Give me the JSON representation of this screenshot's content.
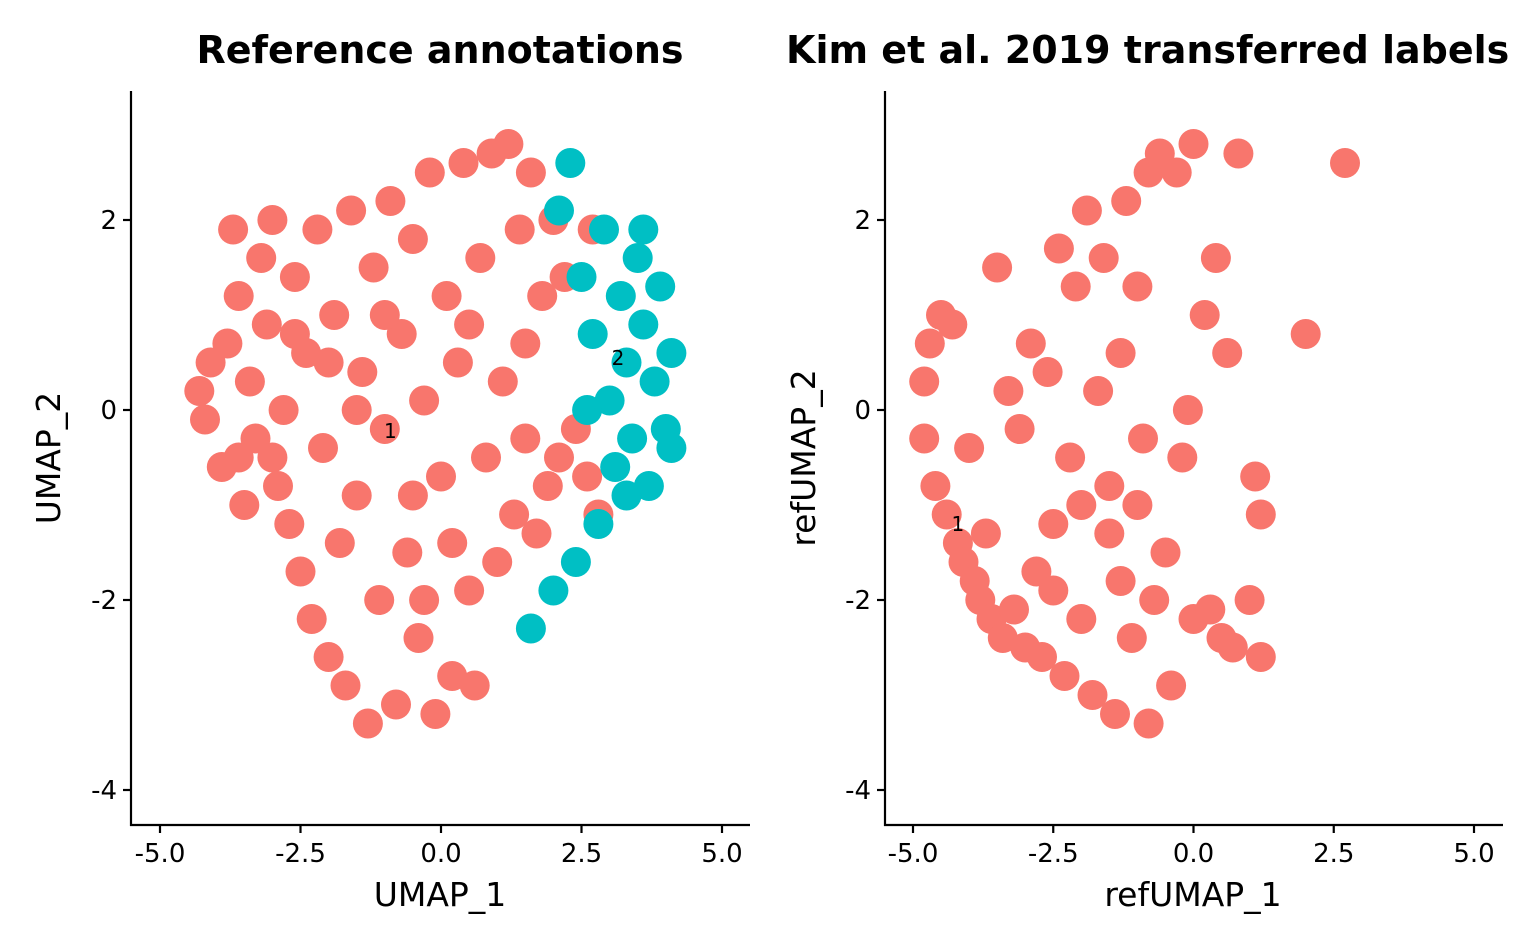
{
  "colors": {
    "cluster_1": "#F8766D",
    "cluster_2": "#00BFC4",
    "axis": "#000000"
  },
  "chart_data": [
    {
      "type": "scatter",
      "title": "Reference annotations",
      "xlabel": "UMAP_1",
      "ylabel": "UMAP_2",
      "xlim": [
        -5.5,
        5.5
      ],
      "ylim": [
        -4.3,
        3.35
      ],
      "xticks": [
        -5,
        -2.5,
        0,
        2.5,
        5
      ],
      "xtick_labels": [
        "-5.0",
        "-2.5",
        "0.0",
        "2.5",
        "5.0"
      ],
      "yticks": [
        -4,
        -2,
        0,
        2
      ],
      "ytick_labels": [
        "-4",
        "-2",
        "0",
        "2"
      ],
      "cluster_labels": [
        {
          "text": "1",
          "x": -0.9,
          "y": -0.22
        },
        {
          "text": "2",
          "x": 3.15,
          "y": 0.55
        }
      ],
      "series": [
        {
          "name": "1",
          "color": "#F8766D",
          "points": [
            [
              -4.3,
              0.2
            ],
            [
              -4.2,
              -0.1
            ],
            [
              -4.1,
              0.5
            ],
            [
              -3.9,
              -0.6
            ],
            [
              -3.8,
              0.7
            ],
            [
              -3.7,
              1.9
            ],
            [
              -3.6,
              1.2
            ],
            [
              -3.5,
              -1.0
            ],
            [
              -3.4,
              0.3
            ],
            [
              -3.3,
              -0.3
            ],
            [
              -3.2,
              1.6
            ],
            [
              -3.1,
              0.9
            ],
            [
              -3.0,
              2.0
            ],
            [
              -2.9,
              -0.8
            ],
            [
              -2.8,
              0.0
            ],
            [
              -2.7,
              -1.2
            ],
            [
              -2.6,
              1.4
            ],
            [
              -2.5,
              -1.7
            ],
            [
              -2.4,
              0.6
            ],
            [
              -2.3,
              -2.2
            ],
            [
              -2.2,
              1.9
            ],
            [
              -2.1,
              -0.4
            ],
            [
              -2.0,
              -2.6
            ],
            [
              -1.9,
              1.0
            ],
            [
              -1.8,
              -1.4
            ],
            [
              -1.7,
              -2.9
            ],
            [
              -1.6,
              2.1
            ],
            [
              -1.5,
              -0.9
            ],
            [
              -1.4,
              0.4
            ],
            [
              -1.3,
              -3.3
            ],
            [
              -1.2,
              1.5
            ],
            [
              -1.1,
              -2.0
            ],
            [
              -1.0,
              -0.2
            ],
            [
              -0.9,
              2.2
            ],
            [
              -0.8,
              -3.1
            ],
            [
              -0.7,
              0.8
            ],
            [
              -0.6,
              -1.5
            ],
            [
              -0.5,
              1.8
            ],
            [
              -0.4,
              -2.4
            ],
            [
              -0.3,
              0.1
            ],
            [
              -0.2,
              2.5
            ],
            [
              -0.1,
              -3.2
            ],
            [
              0.0,
              -0.7
            ],
            [
              0.1,
              1.2
            ],
            [
              0.2,
              -2.8
            ],
            [
              0.3,
              0.5
            ],
            [
              0.4,
              2.6
            ],
            [
              0.5,
              -1.9
            ],
            [
              0.6,
              -2.9
            ],
            [
              0.7,
              1.6
            ],
            [
              0.8,
              -0.5
            ],
            [
              0.9,
              2.7
            ],
            [
              1.0,
              -1.6
            ],
            [
              1.1,
              0.3
            ],
            [
              1.2,
              2.8
            ],
            [
              1.3,
              -1.1
            ],
            [
              1.4,
              1.9
            ],
            [
              1.5,
              -0.3
            ],
            [
              1.6,
              2.5
            ],
            [
              1.7,
              -1.3
            ],
            [
              1.8,
              1.2
            ],
            [
              1.9,
              -0.8
            ],
            [
              2.0,
              2.0
            ],
            [
              2.1,
              -0.5
            ],
            [
              2.2,
              1.4
            ],
            [
              2.4,
              -0.2
            ],
            [
              2.6,
              -0.7
            ],
            [
              2.7,
              1.9
            ],
            [
              2.8,
              -1.1
            ],
            [
              -3.6,
              -0.5
            ],
            [
              -2.6,
              0.8
            ],
            [
              -1.5,
              0.0
            ],
            [
              -0.5,
              -0.9
            ],
            [
              0.5,
              0.9
            ],
            [
              1.5,
              0.7
            ],
            [
              -1.0,
              1.0
            ],
            [
              -2.0,
              0.5
            ],
            [
              -3.0,
              -0.5
            ],
            [
              0.2,
              -1.4
            ],
            [
              -0.3,
              -2.0
            ]
          ]
        },
        {
          "name": "2",
          "color": "#00BFC4",
          "points": [
            [
              2.5,
              1.4
            ],
            [
              2.7,
              0.8
            ],
            [
              2.9,
              1.9
            ],
            [
              3.0,
              0.1
            ],
            [
              3.1,
              -0.6
            ],
            [
              3.2,
              1.2
            ],
            [
              3.3,
              0.5
            ],
            [
              3.4,
              -0.3
            ],
            [
              3.5,
              1.6
            ],
            [
              3.6,
              0.9
            ],
            [
              3.7,
              -0.8
            ],
            [
              3.8,
              0.3
            ],
            [
              3.9,
              1.3
            ],
            [
              4.0,
              -0.2
            ],
            [
              4.1,
              0.6
            ],
            [
              3.3,
              -0.9
            ],
            [
              2.8,
              -1.2
            ],
            [
              2.4,
              -1.6
            ],
            [
              2.0,
              -1.9
            ],
            [
              1.6,
              -2.3
            ],
            [
              2.3,
              2.6
            ],
            [
              2.1,
              2.1
            ],
            [
              3.6,
              1.9
            ],
            [
              4.1,
              -0.4
            ],
            [
              2.6,
              0.0
            ]
          ]
        }
      ]
    },
    {
      "type": "scatter",
      "title": "Kim et al. 2019 transferred labels",
      "xlabel": "refUMAP_1",
      "ylabel": "refUMAP_2",
      "xlim": [
        -5.5,
        5.5
      ],
      "ylim": [
        -4.3,
        3.35
      ],
      "xticks": [
        -5,
        -2.5,
        0,
        2.5,
        5
      ],
      "xtick_labels": [
        "-5.0",
        "-2.5",
        "0.0",
        "2.5",
        "5.0"
      ],
      "yticks": [
        -4,
        -2,
        0,
        2
      ],
      "ytick_labels": [
        "-4",
        "-2",
        "0",
        "2"
      ],
      "cluster_labels": [
        {
          "text": "1",
          "x": -4.2,
          "y": -1.2
        }
      ],
      "series": [
        {
          "name": "1",
          "color": "#F8766D",
          "points": [
            [
              -4.8,
              0.3
            ],
            [
              -4.8,
              -0.3
            ],
            [
              -4.7,
              0.7
            ],
            [
              -4.6,
              -0.8
            ],
            [
              -4.5,
              1.0
            ],
            [
              -4.4,
              -1.1
            ],
            [
              -4.3,
              0.9
            ],
            [
              -4.2,
              -1.4
            ],
            [
              -4.1,
              -1.6
            ],
            [
              -4.0,
              -0.4
            ],
            [
              -3.9,
              -1.8
            ],
            [
              -3.8,
              -2.0
            ],
            [
              -3.7,
              -1.3
            ],
            [
              -3.6,
              -2.2
            ],
            [
              -3.5,
              1.5
            ],
            [
              -3.4,
              -2.4
            ],
            [
              -3.3,
              0.2
            ],
            [
              -3.2,
              -2.1
            ],
            [
              -3.1,
              -0.2
            ],
            [
              -3.0,
              -2.5
            ],
            [
              -2.9,
              0.7
            ],
            [
              -2.8,
              -1.7
            ],
            [
              -2.7,
              -2.6
            ],
            [
              -2.6,
              0.4
            ],
            [
              -2.5,
              -1.9
            ],
            [
              -2.4,
              1.7
            ],
            [
              -2.3,
              -2.8
            ],
            [
              -2.2,
              -0.5
            ],
            [
              -2.1,
              1.3
            ],
            [
              -2.0,
              -2.2
            ],
            [
              -1.9,
              2.1
            ],
            [
              -1.8,
              -3.0
            ],
            [
              -1.7,
              0.2
            ],
            [
              -1.6,
              1.6
            ],
            [
              -1.5,
              -1.3
            ],
            [
              -1.4,
              -3.2
            ],
            [
              -1.3,
              0.6
            ],
            [
              -1.2,
              2.2
            ],
            [
              -1.1,
              -2.4
            ],
            [
              -1.0,
              1.3
            ],
            [
              -0.9,
              -0.3
            ],
            [
              -0.8,
              2.5
            ],
            [
              -0.8,
              -3.3
            ],
            [
              -0.7,
              -2.0
            ],
            [
              -0.6,
              2.7
            ],
            [
              -0.5,
              -1.5
            ],
            [
              -0.4,
              -2.9
            ],
            [
              -0.3,
              2.5
            ],
            [
              -0.2,
              -0.5
            ],
            [
              -0.1,
              0.0
            ],
            [
              0.0,
              -2.2
            ],
            [
              0.0,
              2.8
            ],
            [
              0.2,
              1.0
            ],
            [
              0.3,
              -2.1
            ],
            [
              0.4,
              1.6
            ],
            [
              0.5,
              -2.4
            ],
            [
              0.6,
              0.6
            ],
            [
              0.7,
              -2.5
            ],
            [
              0.8,
              2.7
            ],
            [
              1.0,
              -2.0
            ],
            [
              1.1,
              -0.7
            ],
            [
              1.2,
              -1.1
            ],
            [
              1.2,
              -2.6
            ],
            [
              2.0,
              0.8
            ],
            [
              2.7,
              2.6
            ],
            [
              -1.5,
              -0.8
            ],
            [
              -2.0,
              -1.0
            ],
            [
              -1.0,
              -1.0
            ],
            [
              -2.5,
              -1.2
            ],
            [
              -1.3,
              -1.8
            ]
          ]
        }
      ]
    }
  ]
}
